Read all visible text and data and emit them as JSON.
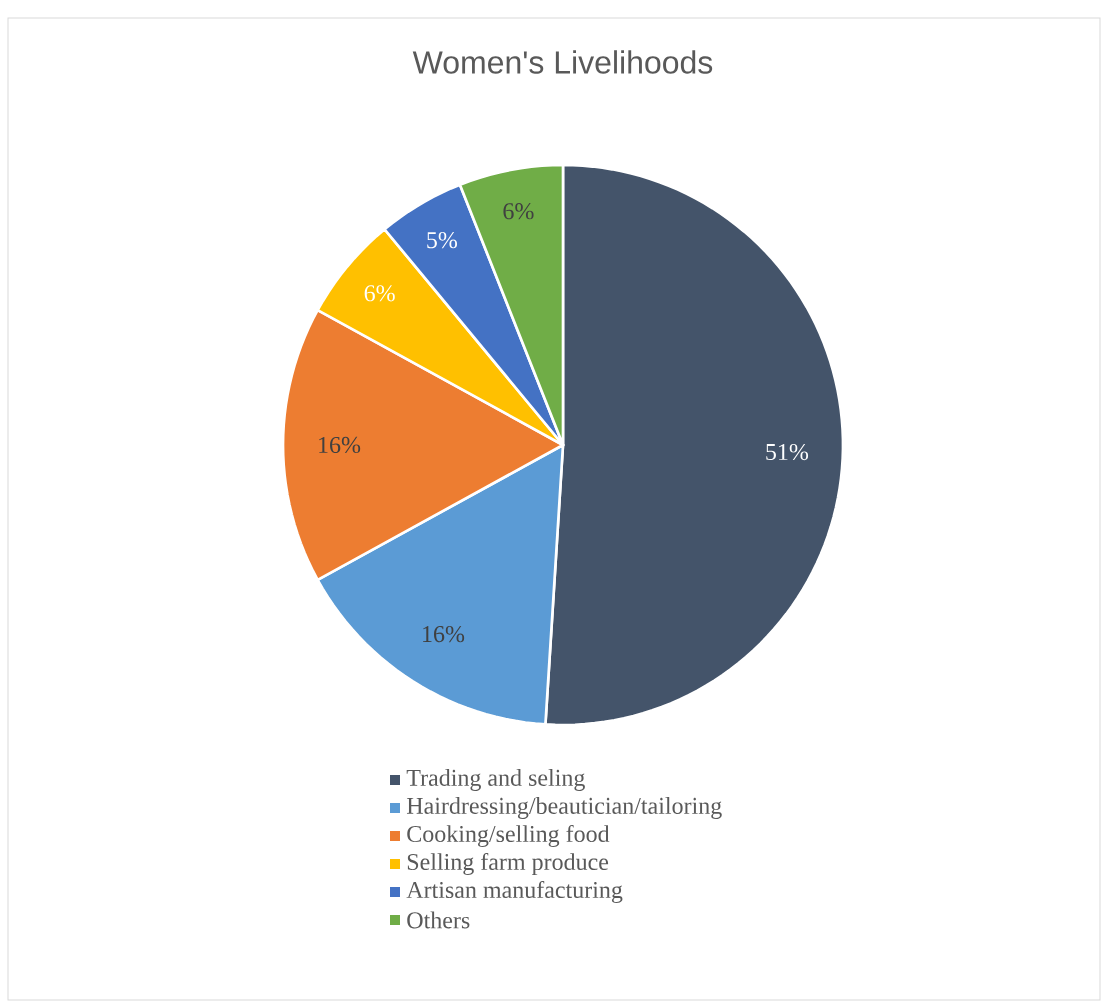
{
  "chart_data": {
    "type": "pie",
    "title": "Women's Livelihoods",
    "categories": [
      "Trading and seling",
      "Hairdressing/beautician/tailoring",
      "Cooking/selling food",
      "Selling farm produce",
      "Artisan manufacturing",
      "Others"
    ],
    "values": [
      51,
      16,
      16,
      6,
      5,
      6
    ],
    "value_labels": [
      "51%",
      "16%",
      "16%",
      "6%",
      "5%",
      "6%"
    ],
    "colors": [
      "#44546a",
      "#5b9bd5",
      "#ed7d31",
      "#ffc000",
      "#4472c4",
      "#70ad47"
    ],
    "legend": "bottom"
  }
}
